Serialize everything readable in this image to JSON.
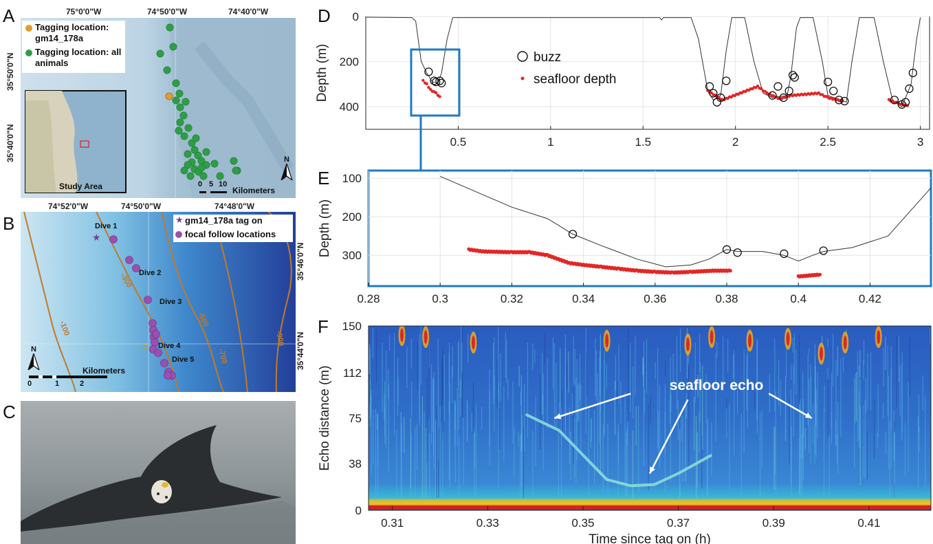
{
  "panel_labels": {
    "A": "A",
    "B": "B",
    "C": "C",
    "D": "D",
    "E": "E",
    "F": "F"
  },
  "map_a": {
    "top_coords": [
      "75°0'0\"W",
      "74°50'0\"W",
      "74°40'0\"W"
    ],
    "left_coords": [
      "35°50'0\"N",
      "35°40'0\"N"
    ],
    "legend": [
      "Tagging location: gm14_178a",
      "Tagging location: all animals"
    ],
    "legend_colors": {
      "focal": "#e69a2e",
      "all": "#2e9e46"
    },
    "inset_label": "Study Area",
    "north": "N",
    "scale_ticks": [
      "0",
      "5",
      "10"
    ],
    "scale_unit": "Kilometers"
  },
  "map_b": {
    "top_coords": [
      "74°52'0\"W",
      "74°50'0\"W",
      "74°48'0\"W"
    ],
    "right_coords": [
      "35°46'0\"N",
      "35°44'0\"N"
    ],
    "legend": [
      "gm14_178a tag on",
      "focal follow locations"
    ],
    "legend_colors": {
      "tag": "#7a3f8f",
      "follow": "#9b4fb0"
    },
    "dives": [
      "Dive 1",
      "Dive 2",
      "Dive 3",
      "Dive 4",
      "Dive 5"
    ],
    "contours": [
      "-100",
      "-300",
      "-500",
      "-700",
      "-900"
    ],
    "north": "N",
    "scale_unit": "Kilometers",
    "scale_ticks": [
      "0",
      "1",
      "2"
    ]
  },
  "chart_data": [
    {
      "id": "D",
      "type": "line",
      "ylabel": "Depth (m)",
      "xlabel": "",
      "xlim": [
        0,
        3.05
      ],
      "ylim": [
        0,
        500
      ],
      "y_inverted": true,
      "xticks": [
        "0.5",
        "1",
        "1.5",
        "2",
        "2.5",
        "3"
      ],
      "yticks": [
        "0",
        "200",
        "400"
      ],
      "legend": {
        "buzz": "buzz",
        "seafloor": "seafloor depth"
      },
      "series": [
        {
          "name": "depth",
          "points": [
            [
              0,
              3
            ],
            [
              0.25,
              5
            ],
            [
              0.27,
              20
            ],
            [
              0.3,
              200
            ],
            [
              0.33,
              250
            ],
            [
              0.36,
              290
            ],
            [
              0.39,
              295
            ],
            [
              0.41,
              250
            ],
            [
              0.44,
              100
            ],
            [
              0.47,
              5
            ],
            [
              1.0,
              5
            ],
            [
              1.59,
              5
            ],
            [
              1.6,
              15
            ],
            [
              1.61,
              5
            ],
            [
              1.76,
              5
            ],
            [
              1.8,
              100
            ],
            [
              1.85,
              330
            ],
            [
              1.88,
              370
            ],
            [
              1.92,
              350
            ],
            [
              1.95,
              150
            ],
            [
              1.98,
              5
            ],
            [
              2.05,
              5
            ],
            [
              2.1,
              200
            ],
            [
              2.15,
              340
            ],
            [
              2.2,
              360
            ],
            [
              2.28,
              350
            ],
            [
              2.3,
              260
            ],
            [
              2.33,
              50
            ],
            [
              2.35,
              5
            ],
            [
              2.42,
              5
            ],
            [
              2.47,
              200
            ],
            [
              2.5,
              350
            ],
            [
              2.6,
              380
            ],
            [
              2.63,
              200
            ],
            [
              2.67,
              5
            ],
            [
              2.75,
              5
            ],
            [
              2.8,
              200
            ],
            [
              2.85,
              370
            ],
            [
              2.9,
              400
            ],
            [
              2.95,
              300
            ],
            [
              2.98,
              100
            ],
            [
              3.0,
              5
            ]
          ]
        },
        {
          "name": "buzz",
          "points": [
            [
              0.34,
              245
            ],
            [
              0.37,
              285
            ],
            [
              0.38,
              290
            ],
            [
              0.4,
              285
            ],
            [
              0.41,
              295
            ],
            [
              1.86,
              310
            ],
            [
              1.88,
              340
            ],
            [
              1.9,
              380
            ],
            [
              1.92,
              360
            ],
            [
              1.95,
              285
            ],
            [
              2.2,
              350
            ],
            [
              2.23,
              310
            ],
            [
              2.26,
              360
            ],
            [
              2.29,
              330
            ],
            [
              2.31,
              260
            ],
            [
              2.32,
              270
            ],
            [
              2.5,
              290
            ],
            [
              2.53,
              330
            ],
            [
              2.56,
              370
            ],
            [
              2.59,
              375
            ],
            [
              2.86,
              370
            ],
            [
              2.9,
              390
            ],
            [
              2.92,
              380
            ],
            [
              2.94,
              320
            ],
            [
              2.96,
              250
            ]
          ]
        },
        {
          "name": "seafloor",
          "points": [
            [
              0.31,
              285
            ],
            [
              0.33,
              300
            ],
            [
              0.35,
              325
            ],
            [
              0.38,
              340
            ],
            [
              0.4,
              355
            ],
            [
              1.85,
              330
            ],
            [
              1.89,
              350
            ],
            [
              1.93,
              370
            ],
            [
              2.12,
              310
            ],
            [
              2.17,
              340
            ],
            [
              2.24,
              365
            ],
            [
              2.3,
              350
            ],
            [
              2.45,
              340
            ],
            [
              2.5,
              360
            ],
            [
              2.58,
              375
            ],
            [
              2.83,
              370
            ],
            [
              2.88,
              385
            ],
            [
              2.93,
              395
            ]
          ]
        }
      ]
    },
    {
      "id": "E",
      "type": "line",
      "ylabel": "Depth (m)",
      "xlabel": "",
      "xlim": [
        0.28,
        0.437
      ],
      "ylim": [
        80,
        380
      ],
      "y_inverted": true,
      "xticks": [
        "0.28",
        "0.3",
        "0.32",
        "0.34",
        "0.36",
        "0.38",
        "0.4",
        "0.42"
      ],
      "yticks": [
        "100",
        "200",
        "300"
      ],
      "series": [
        {
          "name": "depth",
          "points": [
            [
              0.3,
              95
            ],
            [
              0.31,
              135
            ],
            [
              0.32,
              175
            ],
            [
              0.33,
              205
            ],
            [
              0.337,
              245
            ],
            [
              0.345,
              275
            ],
            [
              0.355,
              310
            ],
            [
              0.363,
              330
            ],
            [
              0.37,
              325
            ],
            [
              0.375,
              310
            ],
            [
              0.38,
              285
            ],
            [
              0.383,
              290
            ],
            [
              0.39,
              290
            ],
            [
              0.396,
              300
            ],
            [
              0.4,
              315
            ],
            [
              0.404,
              300
            ],
            [
              0.407,
              290
            ],
            [
              0.415,
              280
            ],
            [
              0.425,
              250
            ],
            [
              0.437,
              125
            ]
          ]
        },
        {
          "name": "buzz",
          "points": [
            [
              0.337,
              245
            ],
            [
              0.38,
              285
            ],
            [
              0.383,
              293
            ],
            [
              0.396,
              296
            ],
            [
              0.407,
              288
            ]
          ]
        },
        {
          "name": "seafloor",
          "points": [
            [
              0.308,
              285
            ],
            [
              0.312,
              290
            ],
            [
              0.32,
              292
            ],
            [
              0.325,
              292
            ],
            [
              0.33,
              300
            ],
            [
              0.336,
              320
            ],
            [
              0.34,
              325
            ],
            [
              0.345,
              330
            ],
            [
              0.35,
              335
            ],
            [
              0.355,
              340
            ],
            [
              0.36,
              343
            ],
            [
              0.365,
              345
            ],
            [
              0.37,
              343
            ],
            [
              0.376,
              340
            ],
            [
              0.381,
              340
            ],
            [
              0.4,
              355
            ],
            [
              0.406,
              350
            ]
          ]
        }
      ]
    },
    {
      "id": "F",
      "type": "heatmap",
      "ylabel": "Echo distance (m)",
      "xlabel": "Time since tag on (h)",
      "xlim": [
        0.305,
        0.423
      ],
      "ylim": [
        0,
        150
      ],
      "xticks": [
        "0.31",
        "0.33",
        "0.35",
        "0.37",
        "0.39",
        "0.41"
      ],
      "yticks": [
        "0",
        "38",
        "75",
        "112",
        "150"
      ],
      "annotation": "seafloor echo",
      "echo_line": [
        [
          0.338,
          78
        ],
        [
          0.345,
          65
        ],
        [
          0.35,
          45
        ],
        [
          0.355,
          25
        ],
        [
          0.36,
          20
        ],
        [
          0.365,
          21
        ],
        [
          0.37,
          30
        ],
        [
          0.377,
          45
        ]
      ]
    }
  ]
}
